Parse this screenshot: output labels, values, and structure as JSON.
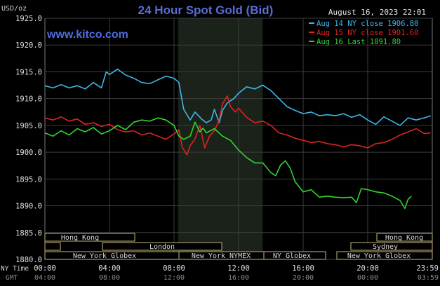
{
  "header": {
    "title": "24 Hour Spot Gold (Bid)",
    "unit": "USD/oz",
    "datetime": "August 16, 2023 22:01",
    "watermark": "www.kitco.com"
  },
  "legend": [
    {
      "label": "Aug 14 NY close 1906.80",
      "color": "#3fb6e8"
    },
    {
      "label": "Aug 15 NY close 1901.60",
      "color": "#e02222"
    },
    {
      "label": "Aug 16 Last 1891.80",
      "color": "#33d433"
    }
  ],
  "axes": {
    "row_label_ny": "NY Time",
    "row_label_gmt": "GMT",
    "gmt_ticks": [
      "04:00",
      "08:00",
      "12:00",
      "16:00",
      "20:00",
      "00:00",
      "03:59"
    ]
  },
  "sessions": {
    "hong_kong_1": "Hong Kong",
    "hong_kong_2": "Hong Kong",
    "london": "London",
    "sydney": "Sydney",
    "new_york_globex_1": "New York Globex",
    "new_york_nymex": "New York NYMEX",
    "ny_globex": "NY Globex",
    "new_york_globex_2": "New York Globex"
  },
  "chart_data": {
    "type": "line",
    "title": "24 Hour Spot Gold (Bid)",
    "ylabel": "USD/oz",
    "ylim": [
      1880,
      1925
    ],
    "yticks": [
      "1925.0",
      "1920.0",
      "1915.0",
      "1910.0",
      "1905.0",
      "1900.0",
      "1895.0",
      "1890.0",
      "1885.0",
      "1880.0"
    ],
    "xlim": [
      0,
      24
    ],
    "xticks": [
      "00:00",
      "04:00",
      "08:00",
      "12:00",
      "16:00",
      "20:00",
      "23:59"
    ],
    "grid": true,
    "shaded_hours": [
      8.25,
      13.5
    ],
    "series": [
      {
        "name": "Aug 14 NY close 1906.80",
        "color": "#3fb6e8",
        "points": [
          [
            0,
            1912.4
          ],
          [
            0.5,
            1912.0
          ],
          [
            1,
            1912.6
          ],
          [
            1.5,
            1912.0
          ],
          [
            2,
            1912.4
          ],
          [
            2.5,
            1911.8
          ],
          [
            3,
            1913.0
          ],
          [
            3.5,
            1912.0
          ],
          [
            3.8,
            1915.0
          ],
          [
            4,
            1914.5
          ],
          [
            4.5,
            1915.5
          ],
          [
            5,
            1914.4
          ],
          [
            5.5,
            1913.8
          ],
          [
            6,
            1913.0
          ],
          [
            6.5,
            1912.8
          ],
          [
            7,
            1913.5
          ],
          [
            7.5,
            1914.2
          ],
          [
            8,
            1913.8
          ],
          [
            8.3,
            1913.0
          ],
          [
            8.6,
            1908.0
          ],
          [
            9,
            1906.0
          ],
          [
            9.3,
            1907.5
          ],
          [
            9.7,
            1906.2
          ],
          [
            10,
            1905.5
          ],
          [
            10.3,
            1906.0
          ],
          [
            10.5,
            1908.0
          ],
          [
            10.8,
            1905.5
          ],
          [
            11,
            1907.8
          ],
          [
            11.3,
            1909.2
          ],
          [
            11.7,
            1910.0
          ],
          [
            12,
            1911.0
          ],
          [
            12.5,
            1912.2
          ],
          [
            13,
            1911.8
          ],
          [
            13.5,
            1912.5
          ],
          [
            14,
            1911.5
          ],
          [
            14.5,
            1910.0
          ],
          [
            15,
            1908.5
          ],
          [
            15.5,
            1907.8
          ],
          [
            16,
            1907.2
          ],
          [
            16.5,
            1907.5
          ],
          [
            17,
            1906.8
          ],
          [
            17.5,
            1907.0
          ],
          [
            18,
            1906.8
          ],
          [
            18.5,
            1907.2
          ],
          [
            19,
            1906.5
          ],
          [
            19.5,
            1907.0
          ],
          [
            20,
            1906.0
          ],
          [
            20.5,
            1905.2
          ],
          [
            21,
            1906.6
          ],
          [
            21.5,
            1905.8
          ],
          [
            22,
            1905.0
          ],
          [
            22.5,
            1906.4
          ],
          [
            23,
            1906.0
          ],
          [
            23.5,
            1906.4
          ],
          [
            23.9,
            1906.8
          ]
        ]
      },
      {
        "name": "Aug 15 NY close 1901.60",
        "color": "#e02222",
        "points": [
          [
            0,
            1906.4
          ],
          [
            0.5,
            1906.0
          ],
          [
            1,
            1906.6
          ],
          [
            1.5,
            1905.8
          ],
          [
            2,
            1906.2
          ],
          [
            2.5,
            1905.2
          ],
          [
            3,
            1905.5
          ],
          [
            3.5,
            1904.8
          ],
          [
            4,
            1905.2
          ],
          [
            4.5,
            1904.2
          ],
          [
            5,
            1903.8
          ],
          [
            5.5,
            1904.0
          ],
          [
            6,
            1903.2
          ],
          [
            6.5,
            1903.6
          ],
          [
            7,
            1903.0
          ],
          [
            7.5,
            1902.4
          ],
          [
            8,
            1903.4
          ],
          [
            8.3,
            1904.2
          ],
          [
            8.5,
            1901.0
          ],
          [
            8.8,
            1899.5
          ],
          [
            9,
            1901.2
          ],
          [
            9.3,
            1902.5
          ],
          [
            9.6,
            1905.0
          ],
          [
            9.9,
            1900.8
          ],
          [
            10.2,
            1903.0
          ],
          [
            10.5,
            1904.0
          ],
          [
            10.8,
            1906.0
          ],
          [
            11,
            1909.0
          ],
          [
            11.3,
            1910.5
          ],
          [
            11.5,
            1908.5
          ],
          [
            11.8,
            1907.5
          ],
          [
            12,
            1908.2
          ],
          [
            12.5,
            1906.5
          ],
          [
            13,
            1905.5
          ],
          [
            13.5,
            1905.8
          ],
          [
            14,
            1905.0
          ],
          [
            14.5,
            1903.6
          ],
          [
            15,
            1903.2
          ],
          [
            15.5,
            1902.6
          ],
          [
            16,
            1902.2
          ],
          [
            16.5,
            1901.8
          ],
          [
            17,
            1902.0
          ],
          [
            17.5,
            1901.6
          ],
          [
            18,
            1901.4
          ],
          [
            18.5,
            1901.0
          ],
          [
            19,
            1901.4
          ],
          [
            19.5,
            1901.2
          ],
          [
            20,
            1900.8
          ],
          [
            20.5,
            1901.6
          ],
          [
            21,
            1901.8
          ],
          [
            21.5,
            1902.4
          ],
          [
            22,
            1903.2
          ],
          [
            22.5,
            1903.8
          ],
          [
            23,
            1904.4
          ],
          [
            23.5,
            1903.5
          ],
          [
            23.9,
            1903.6
          ]
        ]
      },
      {
        "name": "Aug 16 Last 1891.80",
        "color": "#33d433",
        "points": [
          [
            0,
            1903.6
          ],
          [
            0.5,
            1903.0
          ],
          [
            1,
            1904.0
          ],
          [
            1.5,
            1903.2
          ],
          [
            2,
            1904.4
          ],
          [
            2.5,
            1903.8
          ],
          [
            3,
            1904.6
          ],
          [
            3.5,
            1903.4
          ],
          [
            4,
            1904.0
          ],
          [
            4.5,
            1905.0
          ],
          [
            5,
            1904.2
          ],
          [
            5.5,
            1905.6
          ],
          [
            6,
            1906.0
          ],
          [
            6.5,
            1905.8
          ],
          [
            7,
            1906.4
          ],
          [
            7.5,
            1906.0
          ],
          [
            8,
            1905.0
          ],
          [
            8.3,
            1903.0
          ],
          [
            8.6,
            1902.4
          ],
          [
            9,
            1903.0
          ],
          [
            9.3,
            1905.6
          ],
          [
            9.6,
            1903.8
          ],
          [
            9.8,
            1904.5
          ],
          [
            10,
            1903.6
          ],
          [
            10.5,
            1904.4
          ],
          [
            11,
            1903.0
          ],
          [
            11.5,
            1902.2
          ],
          [
            12,
            1900.4
          ],
          [
            12.5,
            1899.0
          ],
          [
            13,
            1898.0
          ],
          [
            13.5,
            1898.0
          ],
          [
            14,
            1896.2
          ],
          [
            14.3,
            1895.6
          ],
          [
            14.6,
            1897.6
          ],
          [
            14.9,
            1898.4
          ],
          [
            15.2,
            1897.0
          ],
          [
            15.5,
            1894.5
          ],
          [
            16,
            1892.6
          ],
          [
            16.5,
            1893.0
          ],
          [
            17,
            1891.6
          ],
          [
            17.5,
            1891.8
          ],
          [
            18,
            1891.6
          ],
          [
            18.5,
            1891.5
          ],
          [
            19,
            1891.6
          ],
          [
            19.3,
            1890.6
          ],
          [
            19.6,
            1893.2
          ],
          [
            20,
            1893.0
          ],
          [
            20.5,
            1892.6
          ],
          [
            21,
            1892.4
          ],
          [
            21.5,
            1891.8
          ],
          [
            22,
            1891.0
          ],
          [
            22.3,
            1889.5
          ],
          [
            22.5,
            1891.2
          ],
          [
            22.7,
            1891.8
          ]
        ]
      }
    ]
  }
}
